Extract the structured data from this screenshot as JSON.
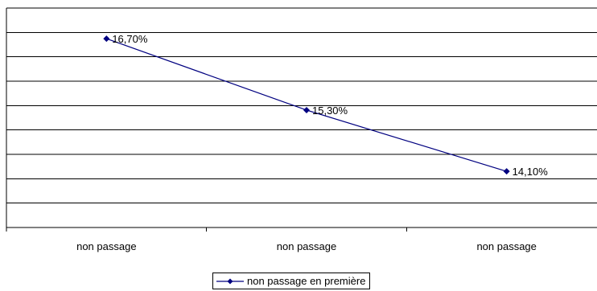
{
  "chart_data": {
    "type": "line",
    "categories": [
      "non passage",
      "non passage",
      "non passage"
    ],
    "series": [
      {
        "name": "non passage en première",
        "values": [
          16.7,
          15.3,
          14.1
        ],
        "labels": [
          "16,70%",
          "15,30%",
          "14,10%"
        ],
        "color": "#000080",
        "marker": "diamond"
      }
    ],
    "title": "",
    "xlabel": "",
    "ylabel": "",
    "ylim": [
      13,
      17.3
    ],
    "grid": true,
    "legend": "bottom"
  }
}
